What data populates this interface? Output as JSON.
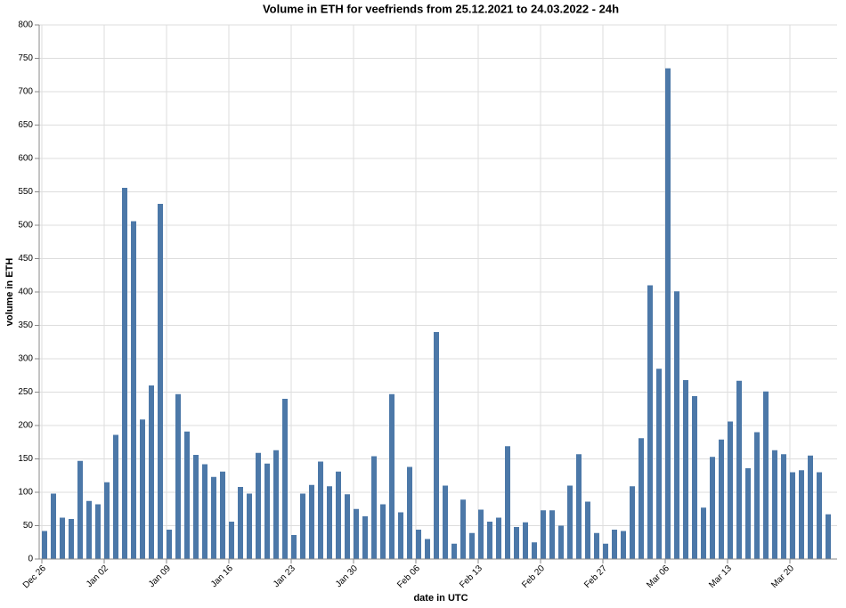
{
  "chart_data": {
    "type": "bar",
    "title": "Volume in ETH for veefriends from 25.12.2021 to 24.03.2022  - 24h",
    "x_label": "date in UTC",
    "y_label": "volume in ETH",
    "color": "#4c78a8",
    "grid": true,
    "x": [
      "2021-12-26",
      "2021-12-27",
      "2021-12-28",
      "2021-12-29",
      "2021-12-30",
      "2021-12-31",
      "2022-01-01",
      "2022-01-02",
      "2022-01-03",
      "2022-01-04",
      "2022-01-05",
      "2022-01-06",
      "2022-01-07",
      "2022-01-08",
      "2022-01-09",
      "2022-01-10",
      "2022-01-11",
      "2022-01-12",
      "2022-01-13",
      "2022-01-14",
      "2022-01-15",
      "2022-01-16",
      "2022-01-17",
      "2022-01-18",
      "2022-01-19",
      "2022-01-20",
      "2022-01-21",
      "2022-01-22",
      "2022-01-23",
      "2022-01-24",
      "2022-01-25",
      "2022-01-26",
      "2022-01-27",
      "2022-01-28",
      "2022-01-29",
      "2022-01-30",
      "2022-01-31",
      "2022-02-01",
      "2022-02-02",
      "2022-02-03",
      "2022-02-04",
      "2022-02-05",
      "2022-02-06",
      "2022-02-07",
      "2022-02-08",
      "2022-02-09",
      "2022-02-10",
      "2022-02-11",
      "2022-02-12",
      "2022-02-13",
      "2022-02-14",
      "2022-02-15",
      "2022-02-16",
      "2022-02-17",
      "2022-02-18",
      "2022-02-19",
      "2022-02-20",
      "2022-02-21",
      "2022-02-22",
      "2022-02-23",
      "2022-02-24",
      "2022-02-25",
      "2022-02-26",
      "2022-02-27",
      "2022-02-28",
      "2022-03-01",
      "2022-03-02",
      "2022-03-03",
      "2022-03-04",
      "2022-03-05",
      "2022-03-06",
      "2022-03-07",
      "2022-03-08",
      "2022-03-09",
      "2022-03-10",
      "2022-03-11",
      "2022-03-12",
      "2022-03-13",
      "2022-03-14",
      "2022-03-15",
      "2022-03-16",
      "2022-03-17",
      "2022-03-18",
      "2022-03-19",
      "2022-03-20",
      "2022-03-21",
      "2022-03-22",
      "2022-03-23",
      "2022-03-24"
    ],
    "values": [
      42,
      98,
      62,
      60,
      147,
      87,
      82,
      115,
      186,
      556,
      506,
      209,
      260,
      532,
      44,
      247,
      191,
      156,
      142,
      123,
      131,
      56,
      108,
      98,
      159,
      143,
      163,
      240,
      36,
      98,
      111,
      146,
      109,
      131,
      97,
      75,
      64,
      154,
      82,
      247,
      70,
      138,
      44,
      30,
      340,
      110,
      23,
      89,
      39,
      74,
      56,
      62,
      169,
      48,
      55,
      25,
      73,
      73,
      50,
      110,
      157,
      86,
      39,
      23,
      44,
      42,
      109,
      181,
      410,
      285,
      735,
      401,
      268,
      244,
      77,
      153,
      179,
      206,
      267,
      136,
      190,
      251,
      163,
      157,
      130,
      133,
      155,
      130,
      67
    ],
    "ylim": [
      0,
      800
    ],
    "yticks": [
      0,
      50,
      100,
      150,
      200,
      250,
      300,
      350,
      400,
      450,
      500,
      550,
      600,
      650,
      700,
      750,
      800
    ],
    "xticks": [
      {
        "value": "2021-12-26",
        "label": "Dec 26"
      },
      {
        "value": "2022-01-02",
        "label": "Jan 02"
      },
      {
        "value": "2022-01-09",
        "label": "Jan 09"
      },
      {
        "value": "2022-01-16",
        "label": "Jan 16"
      },
      {
        "value": "2022-01-23",
        "label": "Jan 23"
      },
      {
        "value": "2022-01-30",
        "label": "Jan 30"
      },
      {
        "value": "2022-02-06",
        "label": "Feb 06"
      },
      {
        "value": "2022-02-13",
        "label": "Feb 13"
      },
      {
        "value": "2022-02-20",
        "label": "Feb 20"
      },
      {
        "value": "2022-02-27",
        "label": "Feb 27"
      },
      {
        "value": "2022-03-06",
        "label": "Mar 06"
      },
      {
        "value": "2022-03-13",
        "label": "Mar 13"
      },
      {
        "value": "2022-03-20",
        "label": "Mar 20"
      }
    ]
  }
}
